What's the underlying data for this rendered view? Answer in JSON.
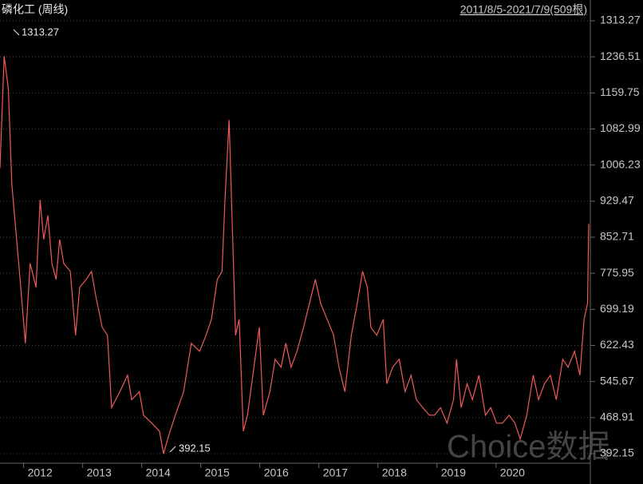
{
  "chart_data": {
    "type": "line",
    "title": "磷化工 (周线)",
    "subtitle": "2011/8/5-2021/7/9(509根)",
    "watermark": "Choice数据",
    "high_label": 1313.27,
    "low_label": 392.15,
    "x": [
      2011.6,
      2011.67,
      2011.74,
      2011.8,
      2011.87,
      2011.94,
      2012.03,
      2012.11,
      2012.21,
      2012.28,
      2012.34,
      2012.41,
      2012.48,
      2012.55,
      2012.61,
      2012.68,
      2012.79,
      2012.88,
      2012.95,
      2013.06,
      2013.15,
      2013.22,
      2013.33,
      2013.42,
      2013.49,
      2013.56,
      2013.63,
      2013.76,
      2013.83,
      2013.96,
      2014.03,
      2014.17,
      2014.3,
      2014.37,
      2014.46,
      2014.57,
      2014.71,
      2014.84,
      2014.98,
      2015.09,
      2015.18,
      2015.28,
      2015.36,
      2015.41,
      2015.48,
      2015.52,
      2015.59,
      2015.65,
      2015.72,
      2015.79,
      2015.9,
      2015.99,
      2016.06,
      2016.17,
      2016.26,
      2016.36,
      2016.44,
      2016.53,
      2016.63,
      2016.74,
      2016.84,
      2016.94,
      2017.03,
      2017.14,
      2017.25,
      2017.34,
      2017.44,
      2017.55,
      2017.65,
      2017.74,
      2017.82,
      2017.88,
      2017.98,
      2018.09,
      2018.15,
      2018.25,
      2018.36,
      2018.46,
      2018.56,
      2018.65,
      2018.76,
      2018.87,
      2018.96,
      2019.06,
      2019.17,
      2019.28,
      2019.33,
      2019.41,
      2019.51,
      2019.6,
      2019.71,
      2019.82,
      2019.91,
      2020.01,
      2020.11,
      2020.22,
      2020.32,
      2020.41,
      2020.52,
      2020.63,
      2020.72,
      2020.82,
      2020.92,
      2021.02,
      2021.13,
      2021.22,
      2021.33,
      2021.42,
      2021.49,
      2021.55,
      2021.57
    ],
    "series": [
      {
        "color": "#f05a5a",
        "values": [
          1000,
          1238,
          1170,
          966,
          864,
          763,
          627,
          797,
          746,
          932,
          848,
          899,
          797,
          763,
          848,
          797,
          780,
          644,
          746,
          763,
          780,
          729,
          661,
          644,
          490,
          507,
          524,
          559,
          507,
          524,
          474,
          457,
          440,
          392,
          432,
          474,
          524,
          627,
          610,
          644,
          678,
          763,
          780,
          932,
          1102,
          932,
          644,
          678,
          440,
          474,
          576,
          661,
          474,
          524,
          593,
          576,
          627,
          576,
          610,
          661,
          712,
          763,
          712,
          678,
          644,
          576,
          524,
          644,
          712,
          780,
          746,
          661,
          644,
          678,
          541,
          576,
          593,
          524,
          559,
          507,
          490,
          474,
          474,
          490,
          457,
          507,
          593,
          490,
          541,
          507,
          559,
          474,
          490,
          457,
          457,
          474,
          457,
          423,
          474,
          559,
          507,
          541,
          559,
          507,
          593,
          576,
          610,
          559,
          678,
          712,
          881
        ]
      }
    ],
    "xlim": [
      2011.6,
      2021.57
    ],
    "xticks": [
      2012,
      2013,
      2014,
      2015,
      2016,
      2017,
      2018,
      2019,
      2020
    ],
    "ylim": [
      392.15,
      1313.27
    ],
    "yticks": [
      1313.27,
      1236.51,
      1159.75,
      1082.99,
      1006.23,
      929.47,
      852.71,
      775.95,
      699.19,
      622.43,
      545.67,
      468.91,
      392.15
    ],
    "grid": true
  }
}
